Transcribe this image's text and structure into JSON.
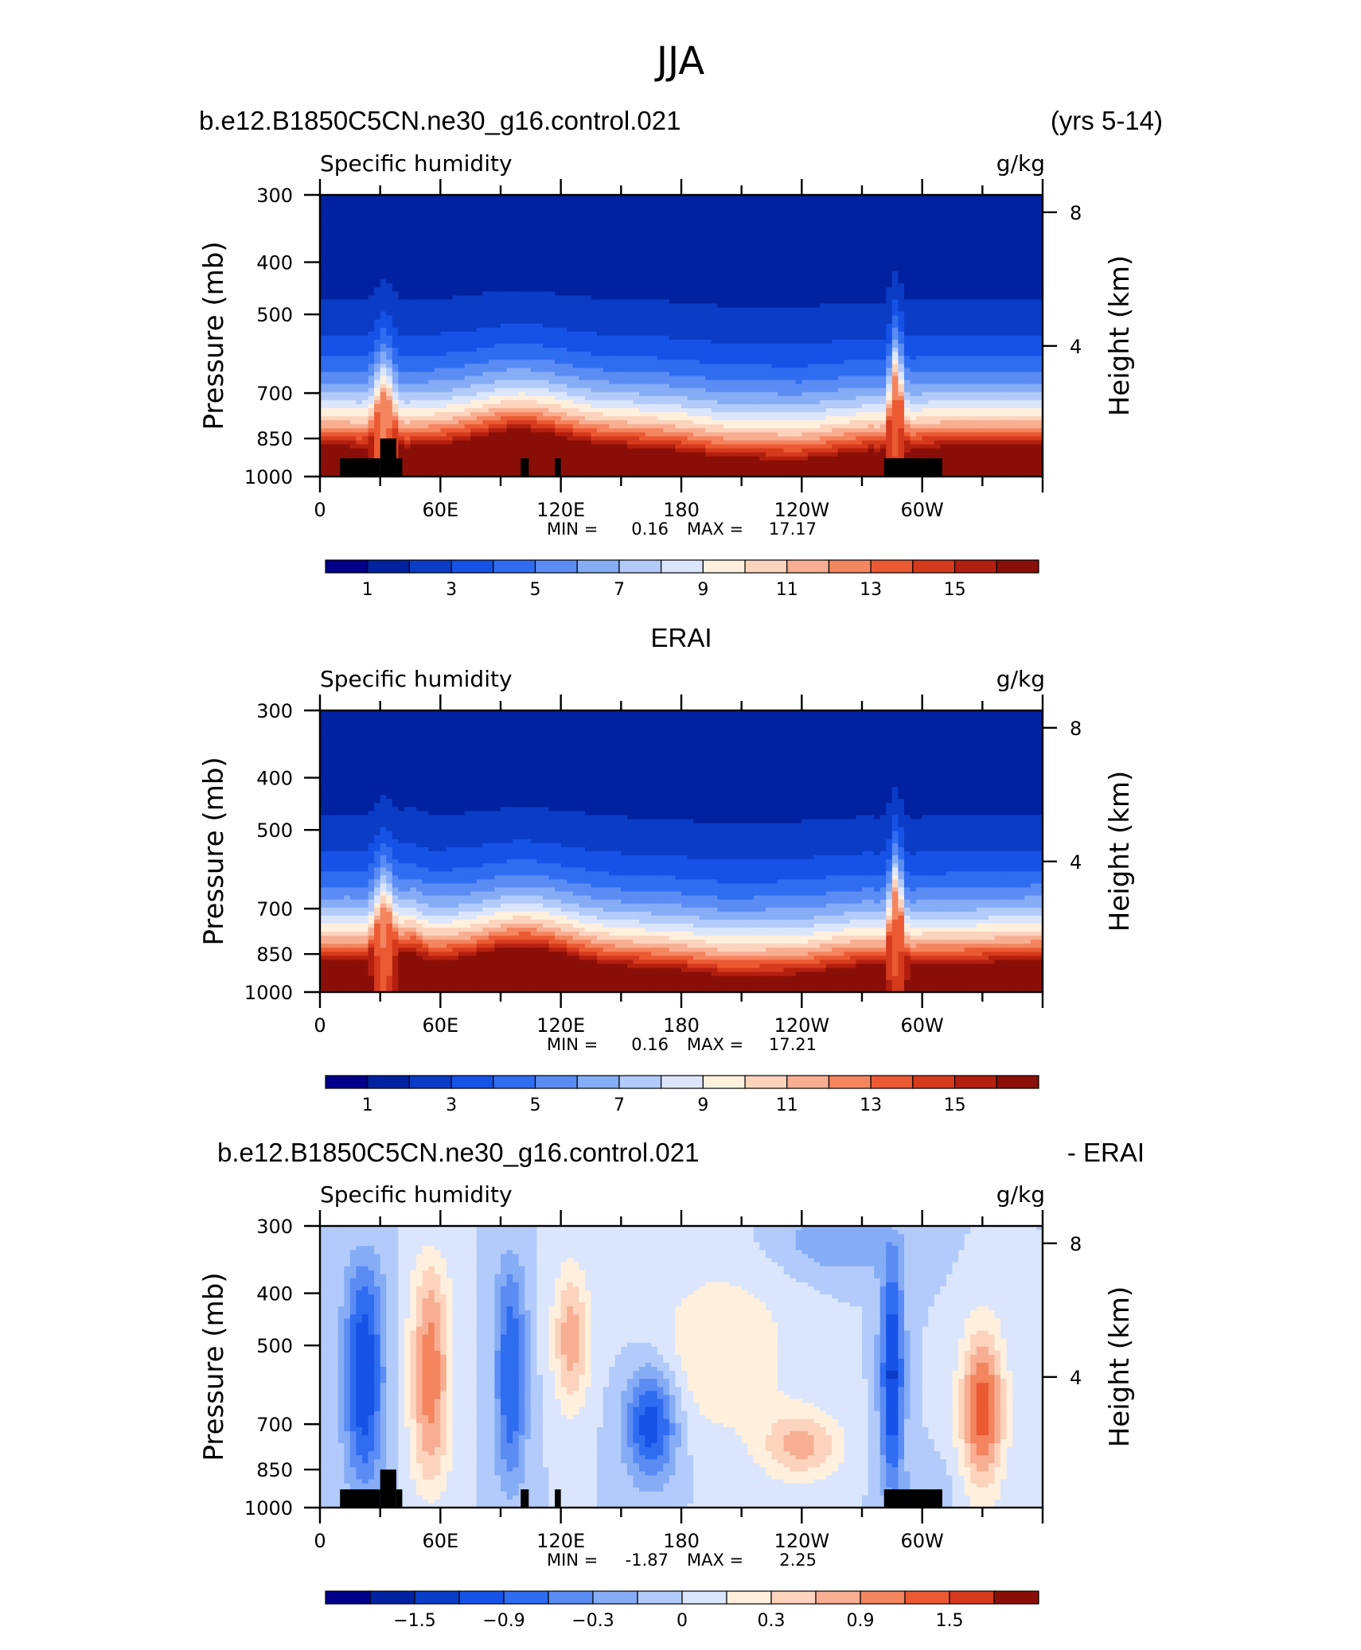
{
  "figure": {
    "main_title": "JJA",
    "top_left": "b.e12.B1850C5CN.ne30_g16.control.021",
    "top_right": "(yrs 5-14)",
    "mid_title": "ERAI",
    "bottom_left": "b.e12.B1850C5CN.ne30_g16.control.021",
    "bottom_right": "- ERAI"
  },
  "chart_data": [
    {
      "type": "heatmap",
      "panel": "model",
      "title": "Specific humidity",
      "units": "g/kg",
      "xlabel": "",
      "ylabel": "Pressure (mb)",
      "ylabel_right": "Height (km)",
      "x_ticks": [
        "0",
        "60E",
        "120E",
        "180",
        "120W",
        "60W"
      ],
      "y_ticks": [
        "300",
        "400",
        "500",
        "700",
        "850",
        "1000"
      ],
      "right_ticks": [
        "4",
        "8"
      ],
      "stats": {
        "min_label": "MIN =",
        "min": "0.16",
        "max_label": "MAX =",
        "max": "17.17"
      },
      "colorbar_labels": [
        "1",
        "3",
        "5",
        "7",
        "9",
        "11",
        "13",
        "15"
      ],
      "levels": [
        0,
        1,
        2,
        3,
        4,
        5,
        6,
        7,
        8,
        9,
        10,
        11,
        12,
        13,
        14,
        15,
        16
      ],
      "terrain": [
        [
          10,
          30,
          925
        ],
        [
          30,
          38,
          850
        ],
        [
          38,
          41,
          925
        ],
        [
          100,
          104,
          925
        ],
        [
          117,
          120,
          925
        ],
        [
          281,
          310,
          925
        ]
      ]
    },
    {
      "type": "heatmap",
      "panel": "obs",
      "title": "Specific humidity",
      "units": "g/kg",
      "xlabel": "",
      "ylabel": "Pressure (mb)",
      "ylabel_right": "Height (km)",
      "x_ticks": [
        "0",
        "60E",
        "120E",
        "180",
        "120W",
        "60W"
      ],
      "y_ticks": [
        "300",
        "400",
        "500",
        "700",
        "850",
        "1000"
      ],
      "right_ticks": [
        "4",
        "8"
      ],
      "stats": {
        "min_label": "MIN =",
        "min": "0.16",
        "max_label": "MAX =",
        "max": "17.21"
      },
      "colorbar_labels": [
        "1",
        "3",
        "5",
        "7",
        "9",
        "11",
        "13",
        "15"
      ],
      "levels": [
        0,
        1,
        2,
        3,
        4,
        5,
        6,
        7,
        8,
        9,
        10,
        11,
        12,
        13,
        14,
        15,
        16
      ],
      "terrain": []
    },
    {
      "type": "heatmap",
      "panel": "diff",
      "title": "Specific humidity",
      "units": "g/kg",
      "xlabel": "",
      "ylabel": "Pressure (mb)",
      "ylabel_right": "Height (km)",
      "x_ticks": [
        "0",
        "60E",
        "120E",
        "180",
        "120W",
        "60W"
      ],
      "y_ticks": [
        "300",
        "400",
        "500",
        "700",
        "850",
        "1000"
      ],
      "right_ticks": [
        "4",
        "8"
      ],
      "stats": {
        "min_label": "MIN =",
        "min": "-1.87",
        "max_label": "MAX =",
        "max": "2.25"
      },
      "colorbar_labels": [
        "−1.5",
        "−0.9",
        "−0.3",
        "0",
        "0.3",
        "0.9",
        "1.5"
      ],
      "levels": [
        -2.1,
        -1.8,
        -1.5,
        -1.2,
        -0.9,
        -0.6,
        -0.3,
        0,
        0.3,
        0.6,
        0.9,
        1.2,
        1.5,
        1.8,
        2.1
      ],
      "terrain": [
        [
          10,
          30,
          925
        ],
        [
          30,
          38,
          850
        ],
        [
          38,
          41,
          925
        ],
        [
          100,
          104,
          925
        ],
        [
          117,
          120,
          925
        ],
        [
          281,
          310,
          925
        ]
      ]
    }
  ],
  "colors": {
    "moist": [
      "#00008b",
      "#0022a0",
      "#0a3cc6",
      "#1652e6",
      "#2f6cf0",
      "#5a8cf4",
      "#86acf6",
      "#b2cbfa",
      "#dbe6fd",
      "#fff0de",
      "#fcd4be",
      "#f8ae93",
      "#f3855f",
      "#eb5a33",
      "#d53a1c",
      "#b31f0f",
      "#8a0f08"
    ],
    "diff": [
      "#00008b",
      "#0022a0",
      "#0a3cc6",
      "#1652e6",
      "#2f6cf0",
      "#5a8cf4",
      "#86acf6",
      "#b2cbfa",
      "#dbe6fd",
      "#fff0de",
      "#fcd4be",
      "#f8ae93",
      "#f3855f",
      "#eb5a33",
      "#d53a1c",
      "#8a0f08"
    ]
  }
}
